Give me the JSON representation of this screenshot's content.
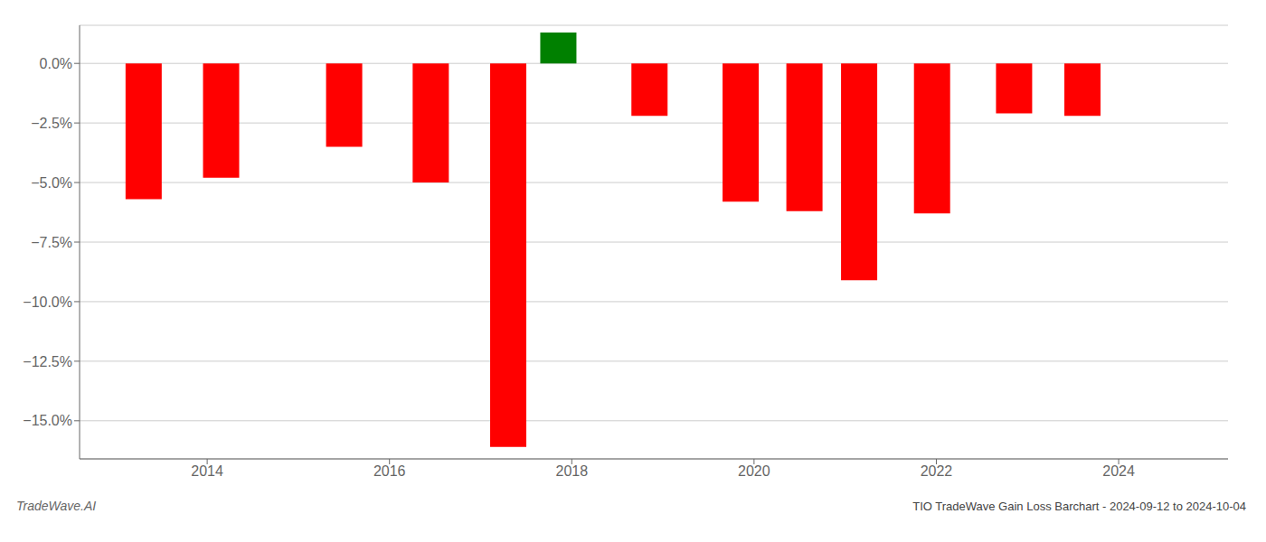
{
  "chart_data": {
    "type": "bar",
    "title": "TIO TradeWave Gain Loss Barchart - 2024-09-12 to 2024-10-04",
    "annotations": [
      "TradeWave.AI"
    ],
    "x": [
      2013.3,
      2014.15,
      2015.5,
      2016.45,
      2017.3,
      2017.85,
      2018.85,
      2019.85,
      2020.55,
      2021.15,
      2021.95,
      2022.85,
      2023.6
    ],
    "values": [
      -5.7,
      -4.8,
      -3.5,
      -5.0,
      -16.1,
      1.3,
      -2.2,
      -5.8,
      -6.2,
      -9.1,
      -6.3,
      -2.1,
      -2.2
    ],
    "colors": [
      "#ff0000",
      "#ff0000",
      "#ff0000",
      "#ff0000",
      "#ff0000",
      "#008000",
      "#ff0000",
      "#ff0000",
      "#ff0000",
      "#ff0000",
      "#ff0000",
      "#ff0000",
      "#ff0000"
    ],
    "xlim": [
      2012.6,
      2025.2
    ],
    "xticks": [
      2014,
      2016,
      2018,
      2020,
      2022,
      2024
    ],
    "ylim": [
      -16.6,
      1.6
    ],
    "yticks": [
      {
        "value": 0.0,
        "label": "0.0%"
      },
      {
        "value": -2.5,
        "label": "−2.5%"
      },
      {
        "value": -5.0,
        "label": "−5.0%"
      },
      {
        "value": -7.5,
        "label": "−7.5%"
      },
      {
        "value": -10.0,
        "label": "−10.0%"
      },
      {
        "value": -12.5,
        "label": "−12.5%"
      },
      {
        "value": -15.0,
        "label": "−15.0%"
      }
    ],
    "grid": true
  }
}
